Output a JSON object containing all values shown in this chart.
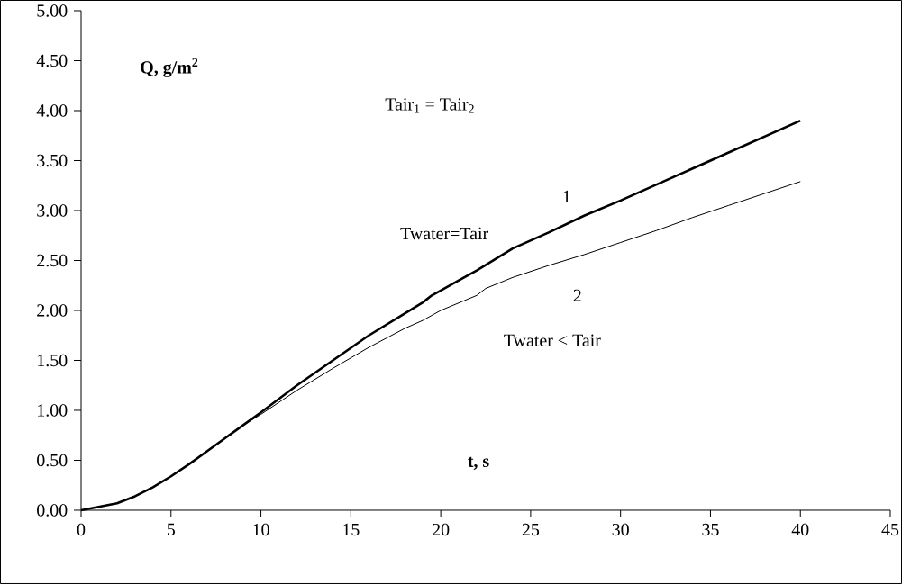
{
  "chart_data": {
    "type": "line",
    "xlabel": "t, s",
    "ylabel": "Q, g/m$^{2}$",
    "annotations": [
      "Tair$_{1}$ = Tair$_{2}$",
      "Twater=Tair",
      "Twater < Tair"
    ],
    "xlim": [
      0,
      45
    ],
    "xticks": [
      0,
      5,
      10,
      15,
      20,
      25,
      30,
      35,
      40,
      45
    ],
    "ylim": [
      0,
      5
    ],
    "yticks": [
      {
        "value": 0,
        "label": "0.00"
      },
      {
        "value": 0.5,
        "label": "0.50"
      },
      {
        "value": 1,
        "label": "1.00"
      },
      {
        "value": 1.5,
        "label": "1.50"
      },
      {
        "value": 2,
        "label": "2.00"
      },
      {
        "value": 2.5,
        "label": "2.50"
      },
      {
        "value": 3,
        "label": "3.00"
      },
      {
        "value": 3.5,
        "label": "3.50"
      },
      {
        "value": 4,
        "label": "4.00"
      },
      {
        "value": 4.5,
        "label": "4.50"
      },
      {
        "value": 5,
        "label": "5.00"
      }
    ],
    "grid": false,
    "legend": false,
    "marker": "none",
    "line_style": "solid",
    "series": [
      {
        "name": "1",
        "color": "#000000",
        "x": [
          0,
          2,
          3,
          4,
          5,
          6,
          7,
          8,
          9,
          10,
          12,
          14,
          16,
          18,
          19,
          19.5,
          20,
          21,
          22,
          24,
          26,
          28,
          30,
          35,
          40
        ],
        "values": [
          0,
          0.07,
          0.14,
          0.23,
          0.34,
          0.46,
          0.59,
          0.72,
          0.85,
          0.98,
          1.25,
          1.5,
          1.75,
          1.97,
          2.08,
          2.15,
          2.2,
          2.3,
          2.4,
          2.62,
          2.78,
          2.95,
          3.1,
          3.5,
          3.9
        ]
      },
      {
        "name": "2",
        "color": "#000000",
        "x": [
          0,
          2,
          3,
          4,
          5,
          6,
          7,
          8,
          9,
          10,
          12,
          14,
          16,
          18,
          19,
          20,
          22,
          22.5,
          24,
          26,
          28,
          30,
          32,
          34,
          36,
          38,
          40
        ],
        "values": [
          0,
          0.07,
          0.14,
          0.23,
          0.34,
          0.46,
          0.59,
          0.72,
          0.85,
          0.96,
          1.2,
          1.42,
          1.63,
          1.82,
          1.9,
          2.0,
          2.15,
          2.22,
          2.33,
          2.45,
          2.56,
          2.68,
          2.8,
          2.93,
          3.05,
          3.17,
          3.29
        ]
      }
    ]
  }
}
